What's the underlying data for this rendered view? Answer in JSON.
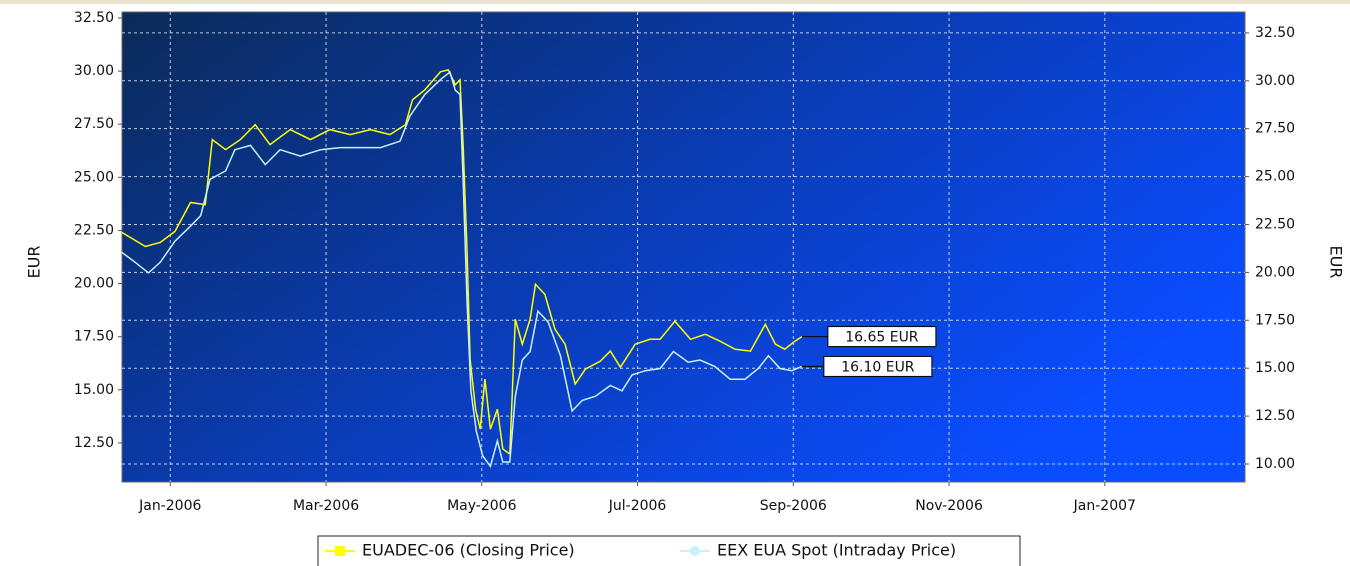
{
  "chart_data": {
    "type": "line",
    "ylabel": "EUR",
    "y2label": "EUR",
    "xlim": [
      -0.62,
      13.8
    ],
    "xticks": [
      {
        "value": 0,
        "label": "Jan-2006"
      },
      {
        "value": 2,
        "label": "Mar-2006"
      },
      {
        "value": 4,
        "label": "May-2006"
      },
      {
        "value": 6,
        "label": "Jul-2006"
      },
      {
        "value": 8,
        "label": "Sep-2006"
      },
      {
        "value": 10,
        "label": "Nov-2006"
      },
      {
        "value": 12,
        "label": "Jan-2007"
      }
    ],
    "ylim": [
      10.66,
      32.78
    ],
    "yticks": [
      {
        "value": 12.5,
        "label": "12.50"
      },
      {
        "value": 15,
        "label": "15.00"
      },
      {
        "value": 17.5,
        "label": "17.50"
      },
      {
        "value": 20,
        "label": "20.00"
      },
      {
        "value": 22.5,
        "label": "22.50"
      },
      {
        "value": 25,
        "label": "25.00"
      },
      {
        "value": 27.5,
        "label": "27.50"
      },
      {
        "value": 30,
        "label": "30.00"
      },
      {
        "value": 32.5,
        "label": "32.50"
      }
    ],
    "y2lim": [
      9.06,
      33.59
    ],
    "y2ticks": [
      {
        "value": 10,
        "label": "10.00"
      },
      {
        "value": 12.5,
        "label": "12.50"
      },
      {
        "value": 15,
        "label": "15.00"
      },
      {
        "value": 17.5,
        "label": "17.50"
      },
      {
        "value": 20,
        "label": "20.00"
      },
      {
        "value": 22.5,
        "label": "22.50"
      },
      {
        "value": 25,
        "label": "25.00"
      },
      {
        "value": 27.5,
        "label": "27.50"
      },
      {
        "value": 30,
        "label": "30.00"
      },
      {
        "value": 32.5,
        "label": "32.50"
      }
    ],
    "grid": true,
    "legend": "bottom",
    "series": [
      {
        "name": "EUADEC-06 (Closing Price)",
        "color": "#ffff00",
        "axis": "y2",
        "end_label": "16.65 EUR",
        "x": [
          -0.62,
          -0.32,
          -0.13,
          0.06,
          0.26,
          0.45,
          0.54,
          0.71,
          0.9,
          1.09,
          1.28,
          1.54,
          1.8,
          2.05,
          2.31,
          2.57,
          2.82,
          3.02,
          3.11,
          3.27,
          3.47,
          3.57,
          3.66,
          3.72,
          3.76,
          3.81,
          3.85,
          3.92,
          3.98,
          4.04,
          4.11,
          4.2,
          4.27,
          4.36,
          4.43,
          4.52,
          4.62,
          4.69,
          4.81,
          4.94,
          5.07,
          5.2,
          5.33,
          5.52,
          5.65,
          5.78,
          5.97,
          6.16,
          6.29,
          6.48,
          6.68,
          6.87,
          7.06,
          7.25,
          7.45,
          7.64,
          7.77,
          7.89,
          8.02,
          8.11
        ],
        "values": [
          22.08,
          21.35,
          21.56,
          22.14,
          23.65,
          23.54,
          26.93,
          26.41,
          26.93,
          27.71,
          26.67,
          27.45,
          26.93,
          27.45,
          27.19,
          27.45,
          27.19,
          27.71,
          29.01,
          29.53,
          30.47,
          30.57,
          29.79,
          30.05,
          26.67,
          21.2,
          15.47,
          12.86,
          11.82,
          14.43,
          11.82,
          12.86,
          10.78,
          10.52,
          17.55,
          16.25,
          17.55,
          19.38,
          18.85,
          17.03,
          16.25,
          14.17,
          14.95,
          15.36,
          15.89,
          15.05,
          16.25,
          16.51,
          16.51,
          17.45,
          16.51,
          16.77,
          16.41,
          15.99,
          15.89,
          17.29,
          16.25,
          15.99,
          16.41,
          16.65
        ]
      },
      {
        "name": "EEX EUA Spot (Intraday Price)",
        "color": "#c8f0ff",
        "axis": "y",
        "end_label": "16.10 EUR",
        "x": [
          -0.62,
          -0.45,
          -0.28,
          -0.13,
          0.06,
          0.26,
          0.39,
          0.51,
          0.71,
          0.83,
          1.03,
          1.22,
          1.41,
          1.67,
          1.93,
          2.18,
          2.44,
          2.7,
          2.95,
          3.08,
          3.27,
          3.47,
          3.59,
          3.66,
          3.72,
          3.76,
          3.81,
          3.86,
          3.93,
          4.01,
          4.11,
          4.2,
          4.27,
          4.36,
          4.43,
          4.52,
          4.62,
          4.72,
          4.85,
          5.01,
          5.16,
          5.29,
          5.46,
          5.65,
          5.8,
          5.93,
          6.1,
          6.29,
          6.46,
          6.65,
          6.8,
          6.99,
          7.19,
          7.38,
          7.55,
          7.68,
          7.83,
          7.98,
          8.11
        ],
        "values": [
          21.46,
          21.0,
          20.5,
          21.0,
          22.0,
          22.7,
          23.2,
          24.9,
          25.3,
          26.3,
          26.5,
          25.6,
          26.3,
          26.0,
          26.3,
          26.4,
          26.4,
          26.4,
          26.7,
          27.9,
          28.9,
          29.6,
          29.95,
          29.1,
          28.9,
          24.9,
          19.2,
          14.95,
          13.06,
          11.9,
          11.4,
          12.6,
          11.6,
          11.6,
          14.7,
          16.4,
          16.8,
          18.7,
          18.2,
          16.6,
          14.0,
          14.5,
          14.7,
          15.2,
          14.95,
          15.7,
          15.9,
          16.0,
          16.8,
          16.3,
          16.4,
          16.1,
          15.5,
          15.5,
          16.0,
          16.6,
          16.0,
          15.9,
          16.1
        ]
      }
    ]
  }
}
